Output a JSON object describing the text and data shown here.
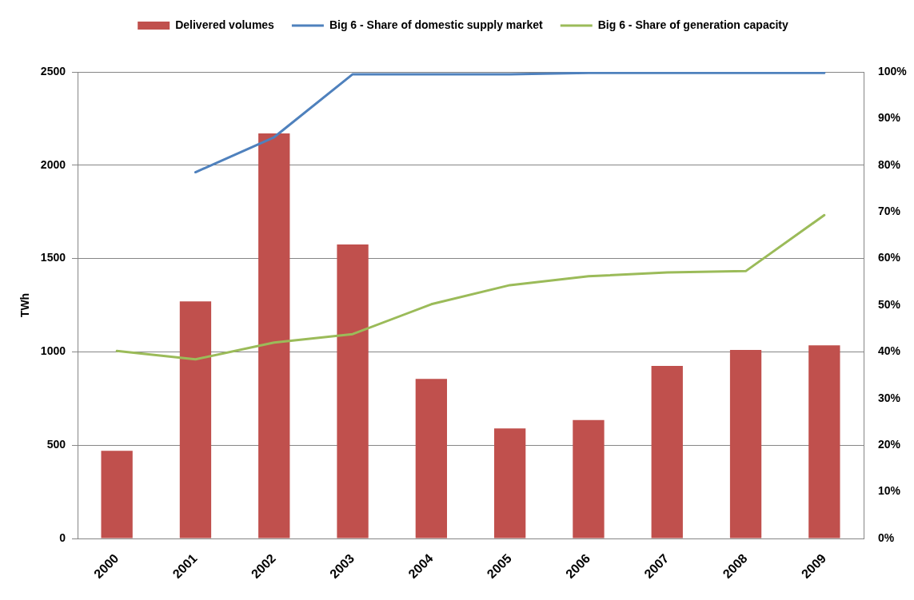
{
  "chart_data": {
    "type": "bar",
    "categories": [
      "2000",
      "2001",
      "2002",
      "2003",
      "2004",
      "2005",
      "2006",
      "2007",
      "2008",
      "2009"
    ],
    "ylabel": "TWh",
    "ylim": [
      0,
      2500
    ],
    "yticks": [
      0,
      500,
      1000,
      1500,
      2000,
      2500
    ],
    "y2lim": [
      0,
      100
    ],
    "y2ticks": [
      {
        "value": 0,
        "label": "0%"
      },
      {
        "value": 10,
        "label": "10%"
      },
      {
        "value": 20,
        "label": "20%"
      },
      {
        "value": 30,
        "label": "30%"
      },
      {
        "value": 40,
        "label": "40%"
      },
      {
        "value": 50,
        "label": "50%"
      },
      {
        "value": 60,
        "label": "60%"
      },
      {
        "value": 70,
        "label": "70%"
      },
      {
        "value": 80,
        "label": "80%"
      },
      {
        "value": 90,
        "label": "90%"
      },
      {
        "value": 100,
        "label": "100%"
      }
    ],
    "series": [
      {
        "name": "Delivered volumes",
        "color": "#c0504d",
        "values": [
          470,
          1270,
          2170,
          1575,
          855,
          590,
          635,
          925,
          1010,
          1035
        ]
      },
      {
        "name": "Big 6 - Share of domestic supply market",
        "type": "line",
        "axis": "y2",
        "color": "#4f81bd",
        "values": [
          null,
          78.5,
          86,
          99.5,
          99.5,
          99.5,
          99.8,
          99.8,
          99.8,
          99.8
        ]
      },
      {
        "name": "Big 6 - Share of generation capacity",
        "type": "line",
        "axis": "y2",
        "color": "#9bbb59",
        "values": [
          40.2,
          38.4,
          42,
          43.8,
          50.2,
          54.3,
          56.2,
          57,
          57.3,
          69.3
        ]
      }
    ],
    "grid": "y",
    "legend": "top",
    "marker": "none"
  }
}
